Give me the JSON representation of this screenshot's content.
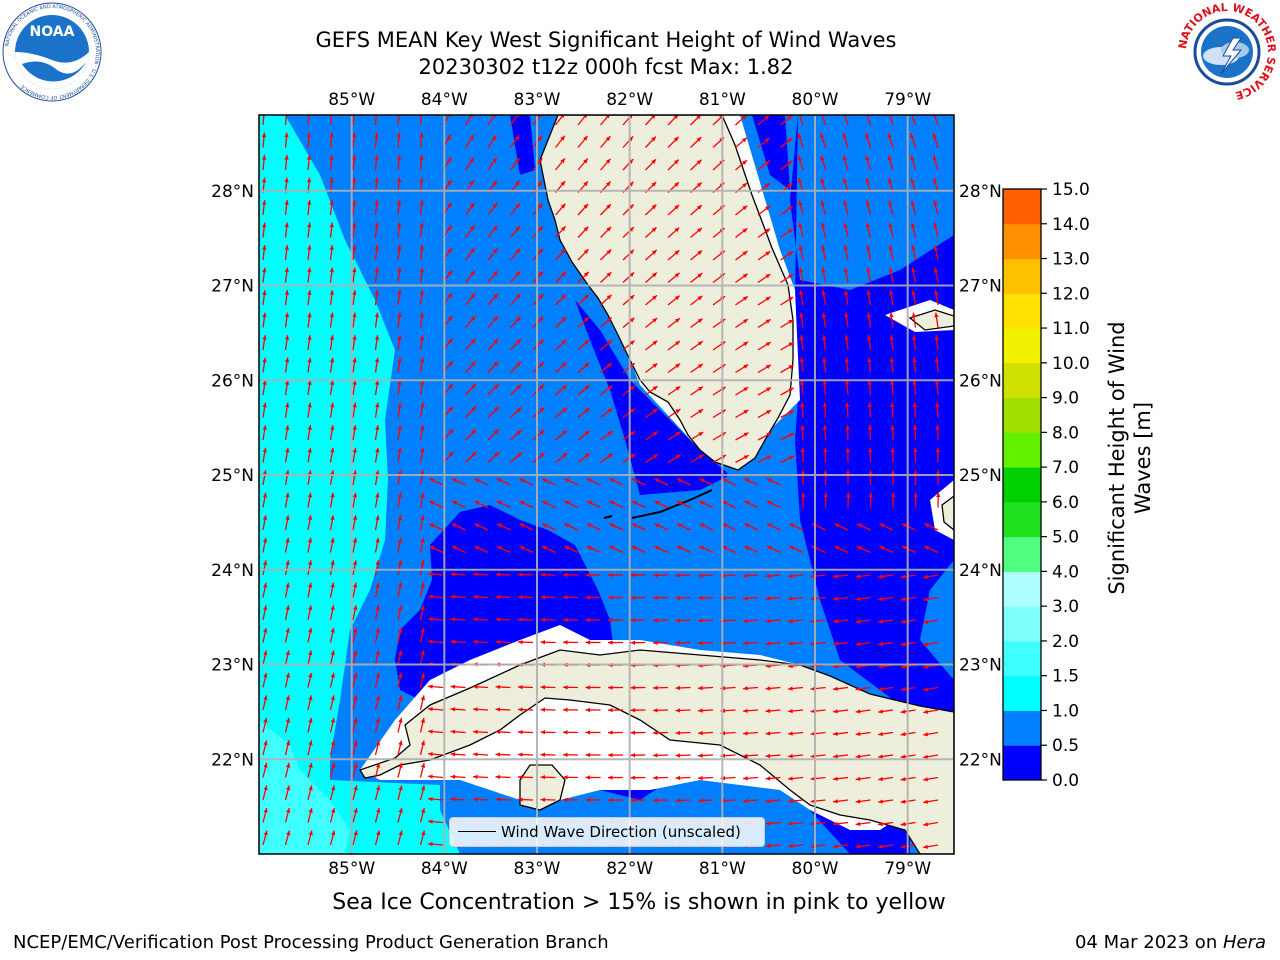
{
  "header": {
    "title_line1": "GEFS MEAN Key West Significant Height of Wind Waves",
    "title_line2": "20230302 t12z 000h fcst   Max: 1.82"
  },
  "logos": {
    "left": "NOAA",
    "left_ring": "NATIONAL OCEANIC AND ATMOSPHERIC ADMINISTRATION · U.S. DEPARTMENT OF COMMERCE",
    "right_ring": "NATIONAL WEATHER SERVICE"
  },
  "map": {
    "lon_labels": [
      "85°W",
      "84°W",
      "83°W",
      "82°W",
      "81°W",
      "80°W",
      "79°W"
    ],
    "lat_labels": [
      "28°N",
      "27°N",
      "26°N",
      "25°N",
      "24°N",
      "23°N",
      "22°N"
    ],
    "lon_range": [
      -86.0,
      -78.5
    ],
    "lat_range": [
      21.0,
      28.8
    ],
    "legend": "Wind Wave Direction (unscaled)",
    "arrow_color": "#ff0000",
    "land_color": "#eeeedd"
  },
  "colorbar": {
    "label": "Significant Height of Wind Waves [m]",
    "ticks": [
      "0.0",
      "0.5",
      "1.0",
      "1.5",
      "2.0",
      "3.0",
      "4.0",
      "5.0",
      "6.0",
      "7.0",
      "8.0",
      "9.0",
      "10.0",
      "11.0",
      "12.0",
      "13.0",
      "14.0",
      "15.0"
    ],
    "colors": [
      "#0000ff",
      "#0080ff",
      "#00ffff",
      "#40ffff",
      "#80ffff",
      "#b0ffff",
      "#50ff80",
      "#20e020",
      "#00d000",
      "#60f000",
      "#a0e000",
      "#d0e000",
      "#f0f000",
      "#ffe000",
      "#ffc000",
      "#ff9000",
      "#ff6000",
      "#ff3000",
      "#ff0000"
    ]
  },
  "footer": {
    "note": "Sea Ice Concentration > 15% is shown in pink to yellow",
    "credit": "NCEP/EMC/Verification Post Processing Product Generation Branch",
    "date": "04 Mar 2023 on ",
    "machine": "Hera"
  }
}
